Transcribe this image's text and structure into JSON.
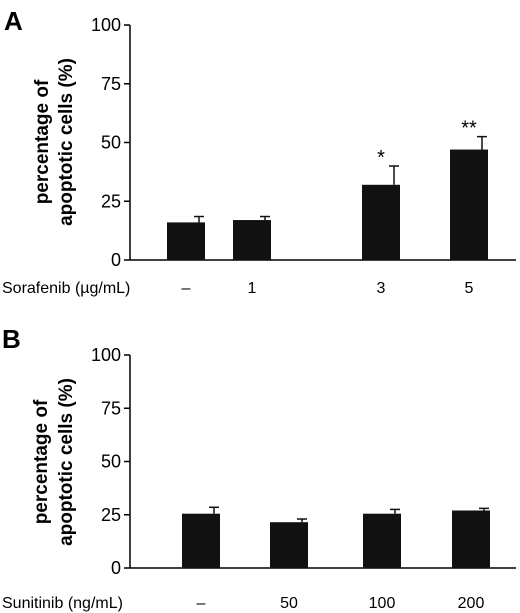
{
  "colors": {
    "bar": "#111111",
    "axis": "#000000",
    "background": "#ffffff"
  },
  "chart_data": [
    {
      "type": "bar",
      "panel_label": "A",
      "xlabel": "Sorafenib (µg/mL)",
      "ylabel_lines": [
        "percentage of",
        "apoptotic cells (%)"
      ],
      "categories": [
        "–",
        "1",
        "3",
        "5"
      ],
      "values": [
        16,
        17,
        32,
        47
      ],
      "errors": [
        2.5,
        1.5,
        8,
        5.5
      ],
      "significance": [
        "",
        "",
        "*",
        "**"
      ],
      "ylim": [
        0,
        100
      ],
      "yticks": [
        0,
        25,
        50,
        75,
        100
      ],
      "grid": false
    },
    {
      "type": "bar",
      "panel_label": "B",
      "xlabel": "Sunitinib (ng/mL)",
      "ylabel_lines": [
        "percentage of",
        "apoptotic cells (%)"
      ],
      "categories": [
        "–",
        "50",
        "100",
        "200"
      ],
      "values": [
        25.5,
        21.5,
        25.5,
        27
      ],
      "errors": [
        3,
        1.5,
        2,
        1
      ],
      "significance": [
        "",
        "",
        "",
        ""
      ],
      "ylim": [
        0,
        100
      ],
      "yticks": [
        0,
        25,
        50,
        75,
        100
      ],
      "grid": false
    }
  ]
}
